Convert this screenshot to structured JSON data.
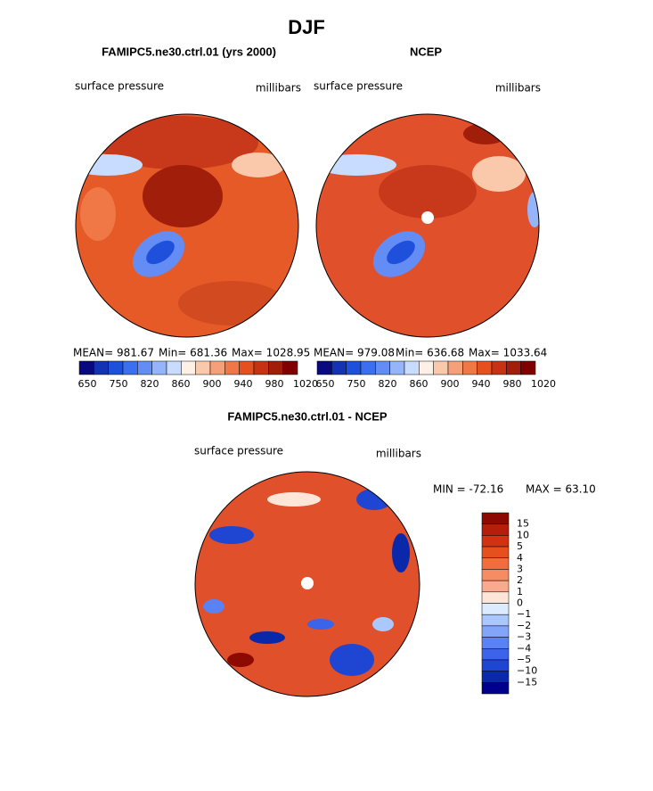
{
  "title": "DJF",
  "panels": [
    {
      "title": "FAMIPC5.ne30.ctrl.01 (yrs 2000)",
      "variable": "surface pressure",
      "units": "millibars",
      "mean": "MEAN= 981.67",
      "min": "Min= 681.36",
      "max": "Max= 1028.95"
    },
    {
      "title": "NCEP",
      "variable": "surface pressure",
      "units": "millibars",
      "mean": "MEAN= 979.08",
      "min": "Min= 636.68",
      "max": "Max= 1033.64"
    }
  ],
  "colorbar": {
    "labels": [
      "650",
      "750",
      "820",
      "860",
      "900",
      "940",
      "980",
      "1020"
    ],
    "colors": [
      "#0a0a80",
      "#1432b4",
      "#1e50dc",
      "#3c6ef0",
      "#648cf5",
      "#96b4fa",
      "#c8dcff",
      "#fff0e6",
      "#fac8aa",
      "#f5a078",
      "#f07846",
      "#e6501e",
      "#c83214",
      "#a01e0a",
      "#800000"
    ]
  },
  "diff": {
    "title": "FAMIPC5.ne30.ctrl.01 - NCEP",
    "variable": "surface pressure",
    "units": "millibars",
    "min": "MIN = -72.16",
    "max": "MAX =  63.10",
    "labels": [
      "15",
      "10",
      "5",
      "4",
      "3",
      "2",
      "1",
      "0",
      "−1",
      "−2",
      "−3",
      "−4",
      "−5",
      "−10",
      "−15"
    ],
    "colors": [
      "#8c0a00",
      "#b41e0a",
      "#d23214",
      "#e6501e",
      "#f06e3c",
      "#f58c64",
      "#faaa8c",
      "#fde6d8",
      "#dcebff",
      "#aac8ff",
      "#82a5fa",
      "#5a82f5",
      "#3c64eb",
      "#1e46d2",
      "#0a28aa",
      "#00008c"
    ]
  }
}
